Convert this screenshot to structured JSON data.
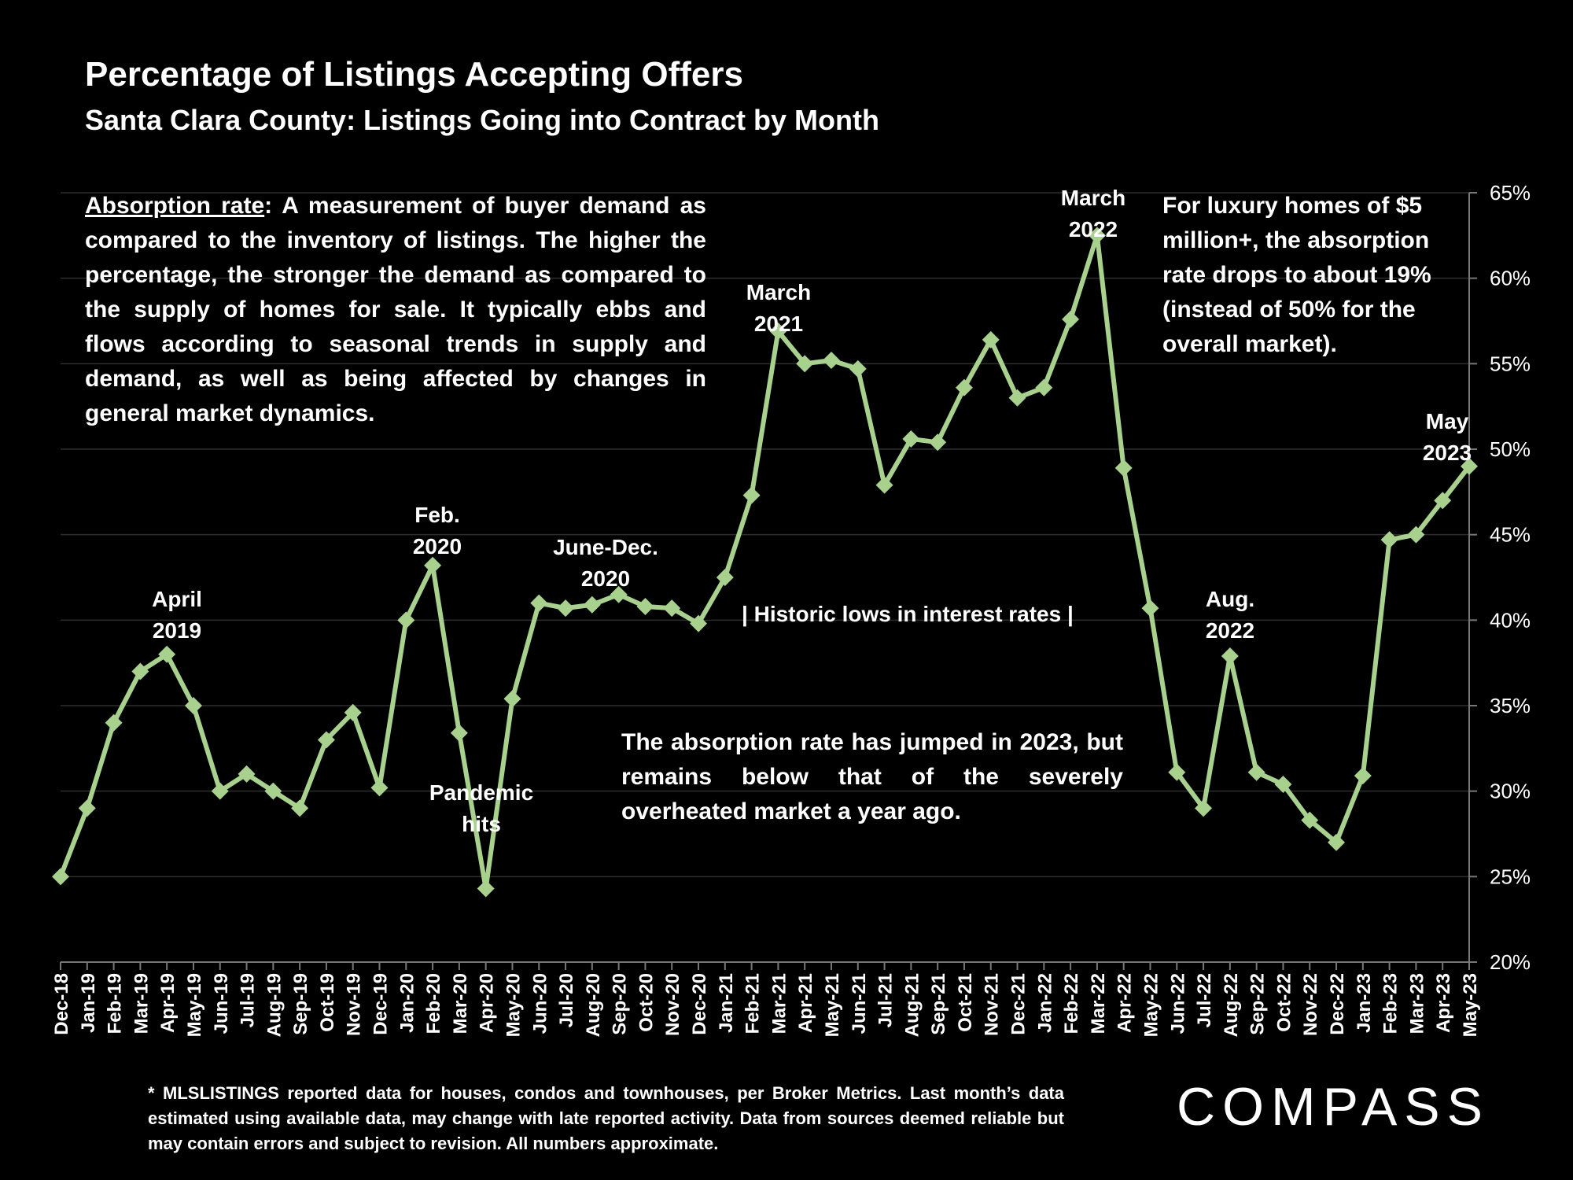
{
  "title": "Percentage of Listings Accepting Offers",
  "subtitle": "Santa Clara County: Listings Going into Contract by Month",
  "definition": {
    "term": "Absorption rate",
    "text": ":  A measurement of buyer demand as compared to the inventory of listings. The higher the percentage, the stronger the demand as compared to the supply of homes for sale. It typically ebbs and flows according to seasonal trends in supply and demand, as well as being affected by changes in general market dynamics."
  },
  "luxury_note": "For luxury homes of $5 million+, the absorption rate drops to about 19% (instead of 50% for the overall market).",
  "jump_note": "The absorption rate has jumped in 2023, but remains below that of the severely overheated market a year ago.",
  "annotations": {
    "apr2019": [
      "April",
      "2019"
    ],
    "feb2020": [
      "Feb.",
      "2020"
    ],
    "pandemic": [
      "Pandemic",
      "hits"
    ],
    "junedec2020": [
      "June-Dec.",
      "2020"
    ],
    "mar2021": [
      "March",
      "2021"
    ],
    "rates": "| Historic lows in interest rates |",
    "mar2022": [
      "March",
      "2022"
    ],
    "aug2022": [
      "Aug.",
      "2022"
    ],
    "may2023": [
      "May",
      "2023"
    ]
  },
  "footnote": "* MLSLISTINGS reported data for houses, condos and townhouses, per Broker Metrics. Last month’s data estimated using available data, may change with late reported activity. Data from sources deemed reliable but may contain errors and subject to revision. All numbers approximate.",
  "logo": "COMPASS",
  "colors": {
    "background": "#000000",
    "line": "#a9d18e",
    "text": "#ffffff",
    "grid": "#2e2e2e"
  },
  "chart_data": {
    "type": "line",
    "title": "Percentage of Listings Accepting Offers",
    "subtitle": "Santa Clara County: Listings Going into Contract by Month",
    "ylim": [
      20,
      65
    ],
    "y_axis_side": "right",
    "yticks": [
      "20%",
      "25%",
      "30%",
      "35%",
      "40%",
      "45%",
      "50%",
      "55%",
      "60%",
      "65%"
    ],
    "ytick_values": [
      20,
      25,
      30,
      35,
      40,
      45,
      50,
      55,
      60,
      65
    ],
    "grid": true,
    "marker": "diamond",
    "categories": [
      "Dec-18",
      "Jan-19",
      "Feb-19",
      "Mar-19",
      "Apr-19",
      "May-19",
      "Jun-19",
      "Jul-19",
      "Aug-19",
      "Sep-19",
      "Oct-19",
      "Nov-19",
      "Dec-19",
      "Jan-20",
      "Feb-20",
      "Mar-20",
      "Apr-20",
      "May-20",
      "Jun-20",
      "Jul-20",
      "Aug-20",
      "Sep-20",
      "Oct-20",
      "Nov-20",
      "Dec-20",
      "Jan-21",
      "Feb-21",
      "Mar-21",
      "Apr-21",
      "May-21",
      "Jun-21",
      "Jul-21",
      "Aug-21",
      "Sep-21",
      "Oct-21",
      "Nov-21",
      "Dec-21",
      "Jan-22",
      "Feb-22",
      "Mar-22",
      "Apr-22",
      "May-22",
      "Jun-22",
      "Jul-22",
      "Aug-22",
      "Sep-22",
      "Oct-22",
      "Nov-22",
      "Dec-22",
      "Jan-23",
      "Feb-23",
      "Mar-23",
      "Apr-23",
      "May-23"
    ],
    "series": [
      {
        "values": [
          25.0,
          29.0,
          34.0,
          37.0,
          38.0,
          35.0,
          30.0,
          31.0,
          30.0,
          29.0,
          33.0,
          34.6,
          30.2,
          40.0,
          43.2,
          33.4,
          24.3,
          35.4,
          41.0,
          40.7,
          40.9,
          41.5,
          40.8,
          40.7,
          39.8,
          42.5,
          47.3,
          56.9,
          55.0,
          55.2,
          54.7,
          47.9,
          50.6,
          50.4,
          53.6,
          56.4,
          53.0,
          53.6,
          57.6,
          62.5,
          48.9,
          40.7,
          31.1,
          29.0,
          37.9,
          31.1,
          30.4,
          28.3,
          27.0,
          30.9,
          44.7,
          45.0,
          47.0,
          49.0
        ]
      }
    ]
  }
}
